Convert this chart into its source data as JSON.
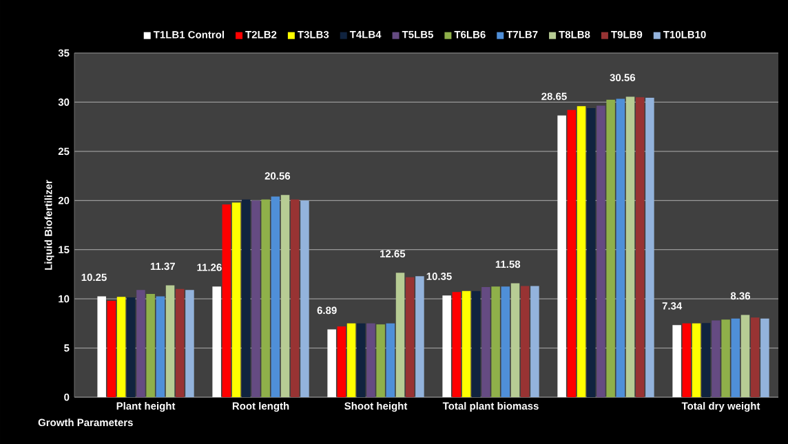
{
  "chart_data": {
    "type": "bar",
    "xlabel": "Growth Parameters",
    "ylabel": "Liquid Biofertilizer",
    "categories": [
      "Plant height",
      "Root length",
      "Shoot height",
      "Total plant biomass",
      null,
      "Total dry weight"
    ],
    "series": [
      {
        "name": "T1LB1 Control",
        "color": "#ffffff",
        "values": [
          10.25,
          11.26,
          6.89,
          10.35,
          28.65,
          7.34
        ],
        "value_labels": [
          "10.25",
          "11.26",
          "6.89",
          "10.35",
          "28.65",
          "7.34"
        ]
      },
      {
        "name": "T2LB2",
        "color": "#ff0000",
        "values": [
          9.8,
          19.6,
          7.2,
          10.7,
          29.2,
          7.5
        ]
      },
      {
        "name": "T3LB3",
        "color": "#ffff00",
        "values": [
          10.2,
          19.8,
          7.5,
          10.8,
          29.6,
          7.5
        ]
      },
      {
        "name": "T4LB4",
        "color": "#10233f",
        "values": [
          10.15,
          20.1,
          7.5,
          10.8,
          29.4,
          7.55
        ]
      },
      {
        "name": "T5LB5",
        "color": "#654b82",
        "values": [
          10.9,
          20.0,
          7.5,
          11.2,
          29.65,
          7.8
        ]
      },
      {
        "name": "T6LB6",
        "color": "#8fb04a",
        "values": [
          10.5,
          20.1,
          7.4,
          11.25,
          30.25,
          7.9
        ]
      },
      {
        "name": "T7LB7",
        "color": "#4f8fd8",
        "values": [
          10.25,
          20.4,
          7.5,
          11.25,
          30.35,
          8.0
        ]
      },
      {
        "name": "T8LB8",
        "color": "#b7cc94",
        "values": [
          11.37,
          20.56,
          12.65,
          11.58,
          30.56,
          8.36
        ],
        "value_labels": [
          "11.37",
          "20.56",
          "12.65",
          "11.58",
          "30.56",
          "8.36"
        ]
      },
      {
        "name": "T9LB9",
        "color": "#983333",
        "values": [
          11.0,
          20.1,
          12.2,
          11.3,
          30.5,
          8.1
        ]
      },
      {
        "name": "T10LB10",
        "color": "#93b3dc",
        "values": [
          10.9,
          20.0,
          12.3,
          11.3,
          30.45,
          8.0
        ]
      }
    ],
    "ylim": [
      0,
      35
    ],
    "yticks": [
      0,
      5,
      10,
      15,
      20,
      25,
      30,
      35
    ],
    "grid": "y",
    "legend": "top"
  }
}
